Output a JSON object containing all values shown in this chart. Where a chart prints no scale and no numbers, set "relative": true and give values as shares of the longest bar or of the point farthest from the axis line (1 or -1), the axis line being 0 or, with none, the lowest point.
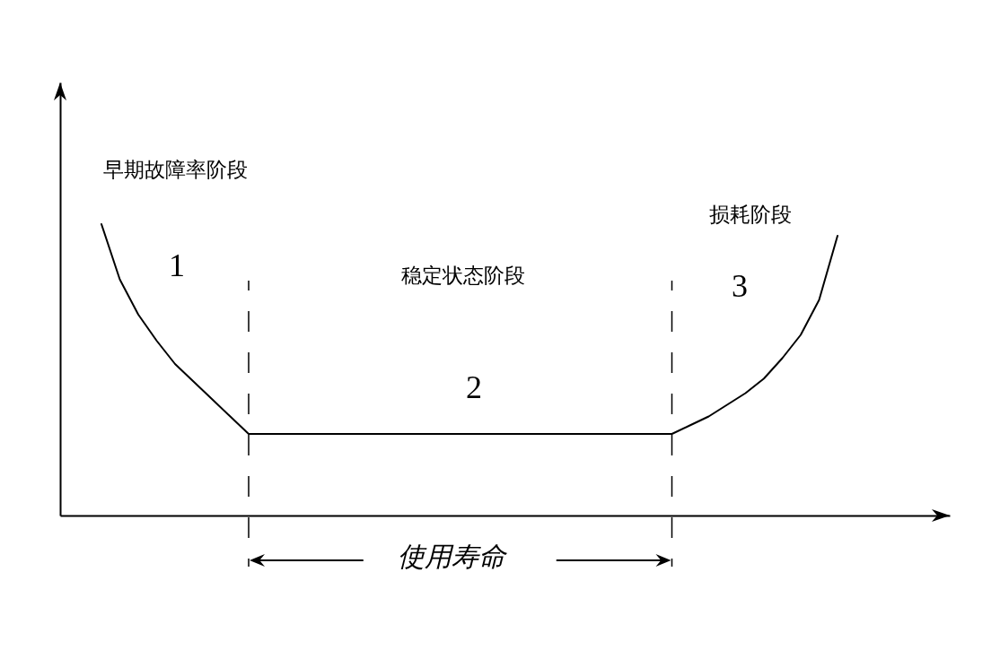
{
  "chart_data": {
    "type": "line",
    "relative": true,
    "categories": [
      null,
      null,
      null,
      null,
      null,
      null,
      null,
      null,
      null,
      null,
      null,
      null,
      null,
      null,
      null,
      null,
      null,
      null,
      null,
      null,
      null,
      null,
      null,
      null,
      null,
      null,
      null,
      null,
      null,
      null,
      null,
      null,
      null,
      null,
      null,
      null,
      null,
      null,
      null,
      null,
      null
    ],
    "values": [
      1,
      0.81,
      0.69,
      0.6,
      0.52,
      0.46,
      0.4,
      0.34,
      0.28,
      0.28,
      0.28,
      0.28,
      0.28,
      0.28,
      0.28,
      0.28,
      0.28,
      0.28,
      0.28,
      0.28,
      0.28,
      0.28,
      0.28,
      0.28,
      0.28,
      0.28,
      0.28,
      0.28,
      0.28,
      0.28,
      0.28,
      0.28,
      0.31,
      0.34,
      0.38,
      0.42,
      0.47,
      0.54,
      0.62,
      0.74,
      0.96
    ],
    "color": "#000000",
    "line_style": "solid",
    "annotations": [
      "早期故障率阶段",
      "1",
      "稳定状态阶段",
      "2",
      "损耗阶段",
      "3",
      "使用寿命"
    ]
  }
}
